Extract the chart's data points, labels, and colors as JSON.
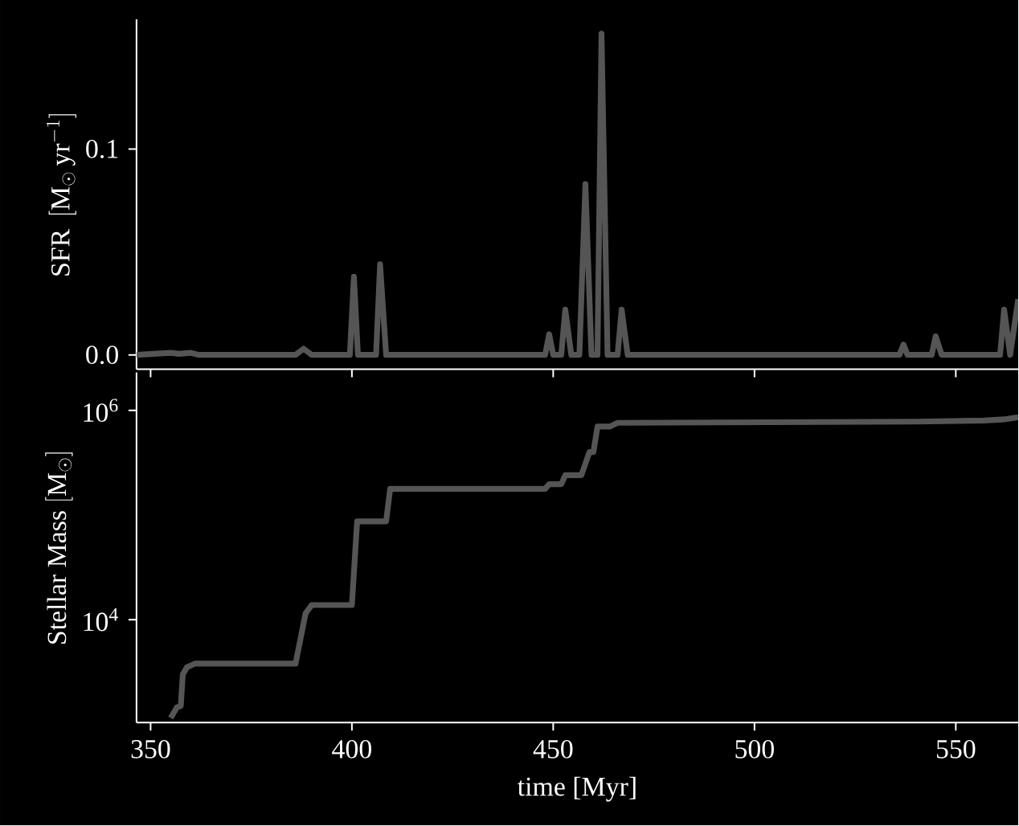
{
  "chart_data": [
    {
      "type": "line",
      "ylabel": "\\mathrm{SFR}\\ \\,[\\mathrm{M}_\\odot\\,\\mathrm{yr}^{-1}]",
      "xlim": [
        346.5,
        565.5
      ],
      "ylim": [
        -0.007,
        0.163
      ],
      "xticks": [
        350,
        400,
        450,
        500,
        550
      ],
      "yticks": [
        {
          "value": 0.0,
          "label": "0.0"
        },
        {
          "value": 0.1,
          "label": "0.1"
        }
      ],
      "tick_labels": "y",
      "x": [
        346.5,
        355,
        357,
        360,
        362,
        386,
        388,
        390,
        399.5,
        400.5,
        401.5,
        406,
        407,
        408.5,
        448,
        449,
        450,
        452,
        453,
        454.5,
        456.5,
        458,
        459.5,
        461,
        462,
        463.5,
        466,
        467,
        468.5,
        536,
        537,
        538,
        544,
        545,
        546.5,
        561,
        562,
        563.5,
        565.5
      ],
      "series": [
        {
          "color": "#555555",
          "values": [
            0,
            0.001,
            0.0005,
            0.001,
            0,
            0,
            0.003,
            0,
            0,
            0.038,
            0,
            0,
            0.044,
            0,
            0,
            0.01,
            0,
            0,
            0.022,
            0,
            0,
            0.083,
            0,
            0,
            0.156,
            0,
            0,
            0.022,
            0,
            0,
            0.005,
            0,
            0,
            0.009,
            0,
            0,
            0.022,
            0,
            0.027
          ]
        }
      ]
    },
    {
      "type": "line",
      "xlabel": "time [Myr]",
      "ylabel": "\\mathrm{Stellar\\ Mass}\\ [\\mathrm{M}_\\odot]",
      "log": "y",
      "xlim": [
        346.5,
        565.5
      ],
      "ylim": [
        1040,
        2300000
      ],
      "xticks": [
        350,
        400,
        450,
        500,
        550
      ],
      "yticks": [
        {
          "value": 10000,
          "label": "10$^{4}$"
        },
        {
          "value": 1000000,
          "label": "10$^{6}$"
        }
      ],
      "x": [
        355,
        356.5,
        357.5,
        358,
        359,
        361,
        386,
        388.5,
        390,
        400,
        401.3,
        408.5,
        409.5,
        448,
        449,
        452,
        453,
        457,
        459,
        460,
        461,
        464,
        466,
        540,
        557,
        562,
        565.5
      ],
      "series": [
        {
          "color": "#555555",
          "values": [
            1150,
            1450,
            1500,
            3000,
            3500,
            3800,
            3800,
            11500,
            13800,
            13800,
            87000,
            87000,
            178000,
            178000,
            197000,
            197000,
            240000,
            240000,
            400000,
            400000,
            700000,
            700000,
            760000,
            780000,
            800000,
            820000,
            860000
          ]
        }
      ]
    }
  ]
}
